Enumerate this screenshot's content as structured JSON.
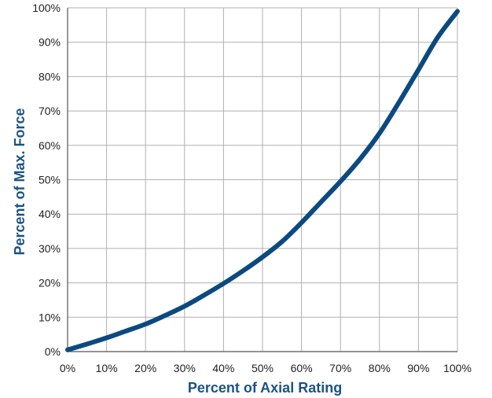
{
  "chart_data": {
    "type": "line",
    "title": "",
    "xlabel": "Percent of Axial Rating",
    "ylabel": "Percent of Max. Force",
    "xlim": [
      0,
      100
    ],
    "ylim": [
      0,
      100
    ],
    "x_ticks": [
      "0%",
      "10%",
      "20%",
      "30%",
      "40%",
      "50%",
      "60%",
      "70%",
      "80%",
      "90%",
      "100%"
    ],
    "y_ticks": [
      "0%",
      "10%",
      "20%",
      "30%",
      "40%",
      "50%",
      "60%",
      "70%",
      "80%",
      "90%",
      "100%"
    ],
    "grid": true,
    "legend": "none",
    "colors": {
      "line": "#0b4a80",
      "axis_title": "#1b5384",
      "grid": "#b0b0b0"
    },
    "series": [
      {
        "x": [
          0,
          5,
          10,
          15,
          20,
          25,
          30,
          35,
          40,
          45,
          50,
          55,
          60,
          65,
          70,
          75,
          80,
          85,
          90,
          95,
          100
        ],
        "y": [
          0.5,
          2.2,
          4,
          6,
          8,
          10.5,
          13.2,
          16.4,
          19.8,
          23.5,
          27.5,
          32,
          37.5,
          43.5,
          49.5,
          56,
          63.5,
          72.5,
          82,
          91.5,
          99
        ]
      }
    ]
  }
}
